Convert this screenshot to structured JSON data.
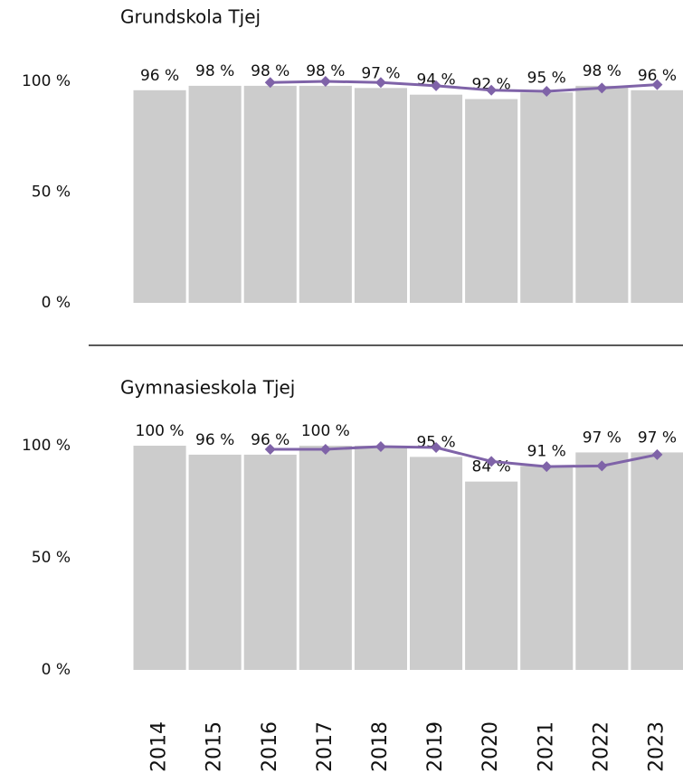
{
  "chart_data": [
    {
      "type": "bar",
      "title": "Grundskola Tjej",
      "ylim": [
        0,
        100
      ],
      "yticks": [
        {
          "value": 0,
          "label": "0 %"
        },
        {
          "value": 50,
          "label": "50 %"
        },
        {
          "value": 100,
          "label": "100 %"
        }
      ],
      "series": [
        {
          "type": "bar",
          "color": "#cccccc",
          "values": [
            96,
            98,
            98,
            98,
            97,
            94,
            92,
            95,
            98,
            96
          ],
          "value_labels": [
            "96 %",
            "98 %",
            "98 %",
            "98 %",
            "97 %",
            "94 %",
            "92 %",
            "95 %",
            "98 %",
            "96 %"
          ]
        },
        {
          "type": "line",
          "color": "#7f63a8",
          "values": [
            null,
            null,
            99.5,
            100,
            99.5,
            98,
            96,
            95.5,
            97,
            98.5
          ]
        }
      ]
    },
    {
      "type": "bar",
      "title": "Gymnasieskola Tjej",
      "categories": [
        "2014",
        "2015",
        "2016",
        "2017",
        "2018",
        "2019",
        "2020",
        "2021",
        "2022",
        "2023"
      ],
      "ylim": [
        0,
        100
      ],
      "yticks": [
        {
          "value": 0,
          "label": "0 %"
        },
        {
          "value": 50,
          "label": "50 %"
        },
        {
          "value": 100,
          "label": "100 %"
        }
      ],
      "series": [
        {
          "type": "bar",
          "color": "#cccccc",
          "values": [
            100,
            96,
            96,
            100,
            100,
            95,
            84,
            91,
            97,
            97
          ],
          "value_labels": [
            "100 %",
            "96 %",
            "96 %",
            "100 %",
            null,
            "95 %",
            "84 %",
            "91 %",
            "97 %",
            "97 %"
          ]
        },
        {
          "type": "line",
          "color": "#7f63a8",
          "values": [
            null,
            null,
            98.4,
            98.4,
            99.6,
            99.2,
            93,
            90.7,
            91,
            96
          ]
        }
      ]
    }
  ]
}
